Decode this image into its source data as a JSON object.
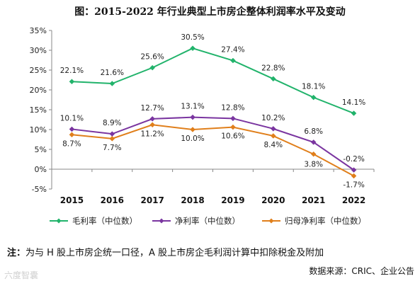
{
  "chart_data": {
    "type": "line",
    "title": "图：2015-2022 年行业典型上市房企整体利润率水平及变动",
    "categories": [
      "2015",
      "2016",
      "2017",
      "2018",
      "2019",
      "2020",
      "2021",
      "2022"
    ],
    "series": [
      {
        "name": "毛利率（中位数）",
        "color": "#21b36b",
        "values": [
          22.1,
          21.6,
          25.6,
          30.5,
          27.4,
          22.8,
          18.1,
          14.1
        ]
      },
      {
        "name": "净利率（中位数）",
        "color": "#7a35a0",
        "values": [
          10.1,
          8.9,
          12.7,
          13.1,
          12.8,
          10.2,
          6.8,
          -0.2
        ]
      },
      {
        "name": "归母净利率（中位数）",
        "color": "#e07f1b",
        "values": [
          8.7,
          7.7,
          11.2,
          10.0,
          10.6,
          8.4,
          3.8,
          -1.7
        ]
      }
    ],
    "ylim": [
      -5,
      35
    ],
    "yticks": [
      "-5%",
      "0%",
      "5%",
      "10%",
      "15%",
      "20%",
      "25%",
      "30%",
      "35%"
    ],
    "labels": [
      [
        "22.1%",
        "21.6%",
        "25.6%",
        "30.5%",
        "27.4%",
        "22.8%",
        "18.1%",
        "14.1%"
      ],
      [
        "10.1%",
        "8.9%",
        "12.7%",
        "13.1%",
        "12.8%",
        "10.2%",
        "6.8%",
        "-0.2%"
      ],
      [
        "8.7%",
        "7.7%",
        "11.2%",
        "10.0%",
        "10.6%",
        "8.4%",
        "3.8%",
        "-1.7%"
      ]
    ],
    "xlabel": "",
    "ylabel": "",
    "grid": false,
    "legend_position": "bottom"
  },
  "note": {
    "lead": "注：",
    "text": "为与 H 股上市房企统一口径，A 股上市房企毛利润计算中扣除税金及附加"
  },
  "source": "数据来源：CRIC、企业公告",
  "watermark": "六度智囊"
}
